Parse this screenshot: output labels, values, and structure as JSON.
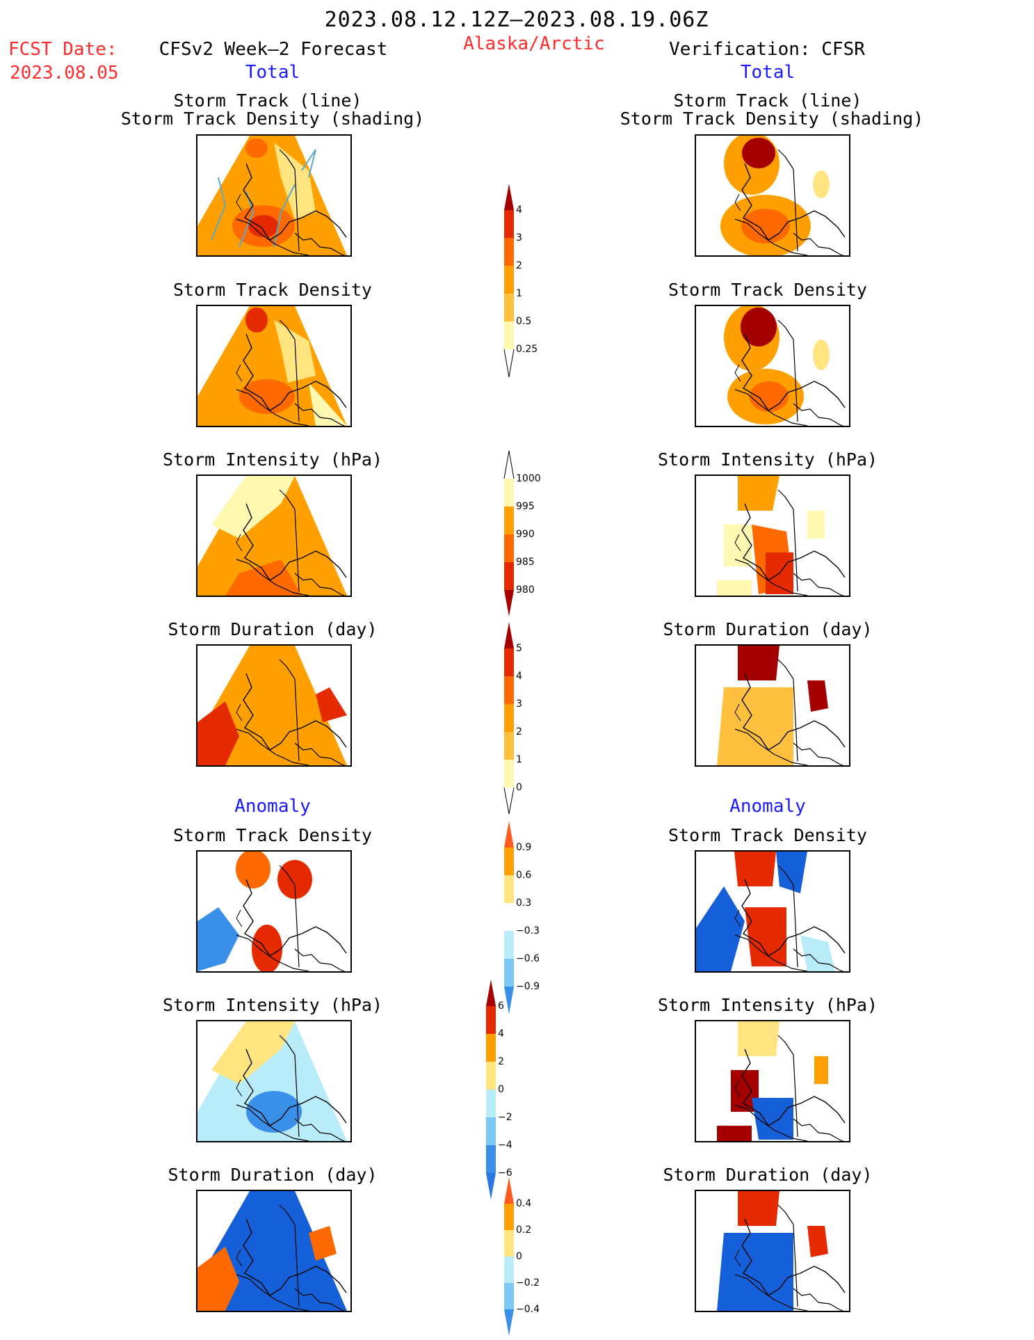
{
  "header": {
    "title": "2023.08.12.12Z–2023.08.19.06Z",
    "fcst_label": "FCST Date:",
    "fcst_date": "2023.08.05",
    "region": "Alaska/Arctic",
    "left_title": "CFSv2 Week–2 Forecast",
    "right_title": "Verification: CFSR",
    "total_left": "Total",
    "total_right": "Total",
    "anomaly_left": "Anomaly",
    "anomaly_right": "Anomaly"
  },
  "panels": {
    "track_line": "Storm Track (line)",
    "track_density_shading": "Storm Track Density (shading)",
    "track_density": "Storm Track Density",
    "intensity": "Storm Intensity (hPa)",
    "duration": "Storm Duration (day)"
  },
  "colorbars": {
    "density_total": [
      "4",
      "3",
      "2",
      "1",
      "0.5",
      "0.25"
    ],
    "intensity_total": [
      "1000",
      "995",
      "990",
      "985",
      "980"
    ],
    "duration_total": [
      "5",
      "4",
      "3",
      "2",
      "1",
      "0"
    ],
    "density_anom": [
      "0.9",
      "0.6",
      "0.3",
      "−0.3",
      "−0.6",
      "−0.9"
    ],
    "intensity_anom": [
      "6",
      "4",
      "2",
      "0",
      "−2",
      "−4",
      "−6"
    ],
    "duration_anom": [
      "0.4",
      "0.2",
      "0",
      "−0.2",
      "−0.4"
    ]
  },
  "colors": {
    "dark_red": "#a50000",
    "red": "#e52a00",
    "orange_red": "#ff6a00",
    "orange": "#ffa000",
    "light_orange": "#ffc040",
    "yellow": "#ffe480",
    "pale_yellow": "#fff8b0",
    "pale_blue": "#b8ecf8",
    "light_blue": "#7cc8f5",
    "mid_blue": "#3a90e8",
    "blue": "#1560d8",
    "track_line": "#5aa7c8"
  }
}
